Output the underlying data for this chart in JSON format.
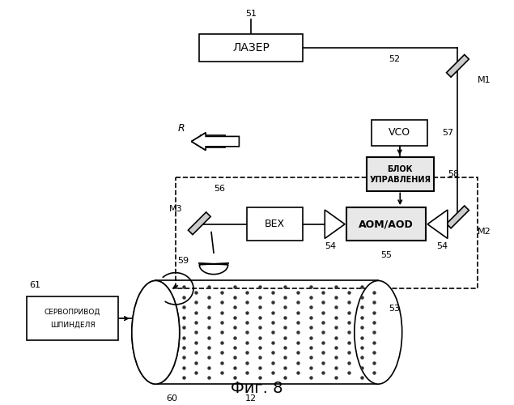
{
  "bg_color": "#ffffff",
  "line_color": "#000000",
  "fig_label": "Фиг. 8",
  "laser_label": "ЛАЗЕР",
  "bex_label": "BEX",
  "aom_label": "AOM/AOD",
  "vco_label": "VCO",
  "bu_line1": "БЛОК",
  "bu_line2": "УПРАВЛЕНИЯ",
  "sp_line1": "СЕРВОПРИВОД",
  "sp_line2": "ШПИНДЕЛЯ"
}
